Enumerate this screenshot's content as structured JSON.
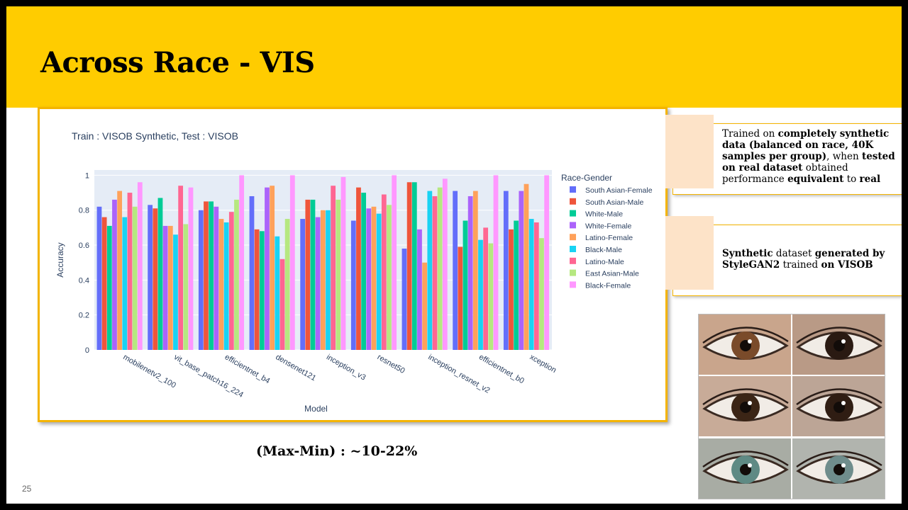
{
  "slide": {
    "title": "Across Race - VIS",
    "page_number": "25",
    "max_min_note": "(Max-Min) : ~10-22%"
  },
  "notes": {
    "note1": {
      "parts": [
        {
          "t": "Trained  on ",
          "b": false
        },
        {
          "t": "completely synthetic data (balanced on race, 40K samples per group)",
          "b": true
        },
        {
          "t": ", when ",
          "b": false
        },
        {
          "t": "tested on real dataset",
          "b": true
        },
        {
          "t": " obtained performance ",
          "b": false
        },
        {
          "t": "equivalent",
          "b": true
        },
        {
          "t": " to ",
          "b": false
        },
        {
          "t": "real",
          "b": true
        }
      ]
    },
    "note2": {
      "parts": [
        {
          "t": "Synthetic",
          "b": true
        },
        {
          "t": " dataset ",
          "b": false
        },
        {
          "t": "generated by StyleGAN2",
          "b": true
        },
        {
          "t": " trained ",
          "b": false
        },
        {
          "t": "on VISOB",
          "b": true
        }
      ]
    }
  },
  "eye_images": [
    {
      "iris": "#7a4b2a",
      "skin": "#c9a58c"
    },
    {
      "iris": "#2a1a12",
      "skin": "#b99a86"
    },
    {
      "iris": "#3b2516",
      "skin": "#c8ab98"
    },
    {
      "iris": "#2f1d13",
      "skin": "#bca596"
    },
    {
      "iris": "#5f8a84",
      "skin": "#a8aca4"
    },
    {
      "iris": "#6f8d8c",
      "skin": "#b1b4ae"
    }
  ],
  "chart_data": {
    "type": "bar",
    "title": "Train : VISOB Synthetic, Test : VISOB",
    "xlabel": "Model",
    "ylabel": "Accuracy",
    "ylim": [
      0,
      1.03
    ],
    "yticks": [
      "0",
      "0.2",
      "0.4",
      "0.6",
      "0.8",
      "1"
    ],
    "ytick_values": [
      0,
      0.2,
      0.4,
      0.6,
      0.8,
      1
    ],
    "legend_title": "Race-Gender",
    "legend_position": "right",
    "grid": true,
    "categories": [
      "mobilenetv2_100",
      "vit_base_patch16_224",
      "efficientnet_b4",
      "densenet121",
      "inception_v3",
      "resnet50",
      "inception_resnet_v2",
      "efficientnet_b0",
      "xception"
    ],
    "series": [
      {
        "name": "South Asian-Female",
        "color": "#636efa",
        "values": [
          0.82,
          0.83,
          0.8,
          0.88,
          0.75,
          0.74,
          0.58,
          0.91,
          0.91
        ]
      },
      {
        "name": "South Asian-Male",
        "color": "#ef553b",
        "values": [
          0.76,
          0.81,
          0.85,
          0.69,
          0.86,
          0.93,
          0.96,
          0.59,
          0.69
        ]
      },
      {
        "name": "White-Male",
        "color": "#00cc96",
        "values": [
          0.71,
          0.87,
          0.85,
          0.68,
          0.86,
          0.9,
          0.96,
          0.74,
          0.74
        ]
      },
      {
        "name": "White-Female",
        "color": "#ab63fa",
        "values": [
          0.86,
          0.71,
          0.82,
          0.93,
          0.76,
          0.81,
          0.69,
          0.88,
          0.91
        ]
      },
      {
        "name": "Latino-Female",
        "color": "#ffa15a",
        "values": [
          0.91,
          0.71,
          0.75,
          0.94,
          0.8,
          0.82,
          0.5,
          0.91,
          0.95
        ]
      },
      {
        "name": "Black-Male",
        "color": "#19d3f3",
        "values": [
          0.76,
          0.66,
          0.73,
          0.65,
          0.8,
          0.78,
          0.91,
          0.63,
          0.75
        ]
      },
      {
        "name": "Latino-Male",
        "color": "#ff6692",
        "values": [
          0.9,
          0.94,
          0.79,
          0.52,
          0.94,
          0.89,
          0.88,
          0.7,
          0.73
        ]
      },
      {
        "name": "East Asian-Male",
        "color": "#b6e880",
        "values": [
          0.82,
          0.72,
          0.86,
          0.75,
          0.86,
          0.83,
          0.93,
          0.61,
          0.64
        ]
      },
      {
        "name": "Black-Female",
        "color": "#ff97ff",
        "values": [
          0.96,
          0.93,
          1.0,
          1.0,
          0.99,
          1.0,
          0.98,
          1.0,
          1.0
        ]
      }
    ]
  }
}
